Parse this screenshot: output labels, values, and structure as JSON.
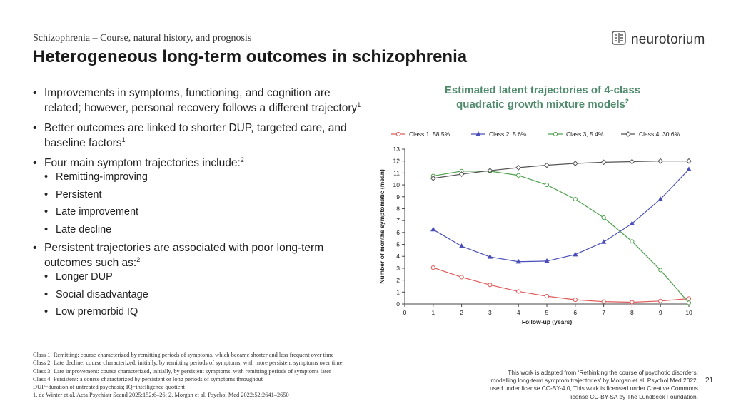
{
  "header": {
    "kicker": "Schizophrenia – Course, natural history, and prognosis",
    "title": "Heterogeneous long-term outcomes in schizophrenia",
    "logo_text": "neurotorium"
  },
  "bullets": {
    "b1_text": "Improvements in symptoms, functioning, and cognition are related; however, personal recovery follows a different trajectory",
    "b1_ref": "1",
    "b2_text": "Better outcomes are linked to shorter DUP, targeted care, and baseline factors",
    "b2_ref": "1",
    "b3_text": "Four main symptom trajectories include:",
    "b3_ref": "2",
    "b3_sub": [
      "Remitting-improving",
      "Persistent",
      "Late improvement",
      "Late decline"
    ],
    "b4_text": "Persistent trajectories are associated with poor long-term outcomes such as:",
    "b4_ref": "2",
    "b4_sub": [
      "Longer DUP",
      "Social disadvantage",
      "Low premorbid IQ"
    ]
  },
  "footnotes": [
    "Class 1: Remitting: course characterized by remitting periods of symptoms, which became shorter and less frequent over time",
    "Class 2: Late decline: course characterized, initially, by remitting periods of symptoms, with more persistent symptoms over time",
    "Class 3: Late improvement: course characterized, initially, by persistent symptoms, with remitting periods of symptoms later",
    "Class 4: Persistent: a course characterized by persistent or long periods of symptoms throughout",
    "DUP=duration of untreated psychosis; IQ=intelligence quotient",
    "1. de Winter et al. Acta Psychiatr Scand 2025;152:6–26; 2. Morgan et al. Psychol Med 2022;52:2641–2650"
  ],
  "attribution": [
    "This work is adapted from ‘Rethinking the course of psychotic disorders:",
    "modelling long-term symptom trajectories’ by Morgan et al. Psychol Med 2022,",
    "used under license CC-BY-4.0, This work is licensed under Creative Commons",
    "license CC-BY-SA by The Lundbeck Foundation."
  ],
  "page_number": "21",
  "chart_data": {
    "type": "line",
    "title_line1": "Estimated latent trajectories of 4-class",
    "title_line2": "quadratic growth mixture models",
    "title_ref": "2",
    "xlabel": "Follow-up (years)",
    "ylabel": "Number of months symptomatic (mean)",
    "xlim": [
      0,
      10
    ],
    "ylim": [
      0,
      13
    ],
    "x": [
      1,
      2,
      3,
      4,
      5,
      6,
      7,
      8,
      9,
      10
    ],
    "legend_position": "top",
    "grid": false,
    "series": [
      {
        "name": "Class 1, 58.5%",
        "color": "#e05a5a",
        "marker": "circle",
        "values": [
          3.05,
          2.25,
          1.6,
          1.05,
          0.65,
          0.35,
          0.2,
          0.15,
          0.25,
          0.45
        ]
      },
      {
        "name": "Class 2, 5.6%",
        "color": "#4a4fb8",
        "marker": "triangle",
        "values": [
          6.25,
          4.85,
          3.95,
          3.55,
          3.6,
          4.15,
          5.2,
          6.75,
          8.8,
          11.3
        ]
      },
      {
        "name": "Class 3, 5.4%",
        "color": "#4ea24e",
        "marker": "circle",
        "values": [
          10.75,
          11.15,
          11.15,
          10.8,
          10.0,
          8.8,
          7.25,
          5.25,
          2.85,
          0.1
        ]
      },
      {
        "name": "Class 4, 30.6%",
        "color": "#555555",
        "marker": "diamond",
        "values": [
          10.55,
          10.9,
          11.2,
          11.45,
          11.65,
          11.8,
          11.9,
          11.95,
          12.0,
          12.0
        ]
      }
    ]
  }
}
